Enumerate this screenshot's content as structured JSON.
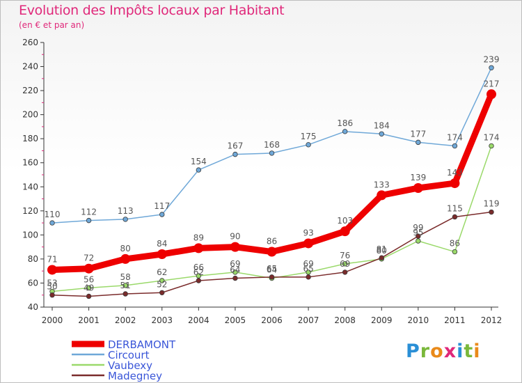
{
  "header": {
    "title": "Evolution des Impôts locaux par Habitant",
    "subtitle": "(en € et par an)"
  },
  "logo": {
    "letters": [
      "P",
      "r",
      "o",
      "x",
      "i",
      "t",
      "i"
    ],
    "colors": [
      "#2a8fd6",
      "#7ab83b",
      "#e98a1a",
      "#e0287a",
      "#2a8fd6",
      "#7ab83b",
      "#e98a1a"
    ]
  },
  "chart_data": {
    "type": "line",
    "title": "Evolution des Impôts locaux par Habitant",
    "subtitle": "(en € et par an)",
    "xlabel": "",
    "ylabel": "",
    "categories": [
      "2000",
      "2001",
      "2002",
      "2003",
      "2004",
      "2005",
      "2006",
      "2007",
      "2008",
      "2009",
      "2010",
      "2011",
      "2012"
    ],
    "ylim": [
      40,
      260
    ],
    "yticks": [
      40,
      60,
      80,
      100,
      120,
      140,
      160,
      180,
      200,
      220,
      240,
      260
    ],
    "grid": false,
    "legend": "bottom-left",
    "series": [
      {
        "name": "DERBAMONT",
        "color": "#ee0000",
        "emphasis": true,
        "values": [
          71,
          72,
          80,
          84,
          89,
          90,
          86,
          93,
          103,
          133,
          139,
          143,
          217
        ],
        "labels": [
          "71",
          "72",
          "80",
          "84",
          "89",
          "90",
          "86",
          "93",
          "103",
          "133",
          "139",
          "143",
          "217"
        ]
      },
      {
        "name": "Circourt",
        "color": "#6fa8d8",
        "emphasis": false,
        "values": [
          110,
          112,
          113,
          117,
          154,
          167,
          168,
          175,
          186,
          184,
          177,
          174,
          239
        ],
        "labels": [
          "110",
          "112",
          "113",
          "117",
          "154",
          "167",
          "168",
          "175",
          "186",
          "184",
          "177",
          "174",
          "239"
        ]
      },
      {
        "name": "Vaubexy",
        "color": "#9ad96a",
        "emphasis": false,
        "values": [
          53,
          56,
          58,
          62,
          66,
          69,
          64,
          69,
          76,
          80,
          95,
          86,
          174
        ],
        "labels": [
          "53",
          "56",
          "58",
          "62",
          "66",
          "69",
          "64",
          "69",
          "76",
          "80",
          "95",
          "86",
          "174"
        ]
      },
      {
        "name": "Madegney",
        "color": "#7a2b2b",
        "emphasis": false,
        "values": [
          50,
          49,
          51,
          52,
          62,
          64,
          65,
          65,
          69,
          81,
          99,
          115,
          119
        ],
        "labels": [
          "50",
          "49",
          "51",
          "52",
          "62",
          "64",
          "65",
          "65",
          "69",
          "81",
          "99",
          "115",
          "119"
        ]
      }
    ]
  }
}
